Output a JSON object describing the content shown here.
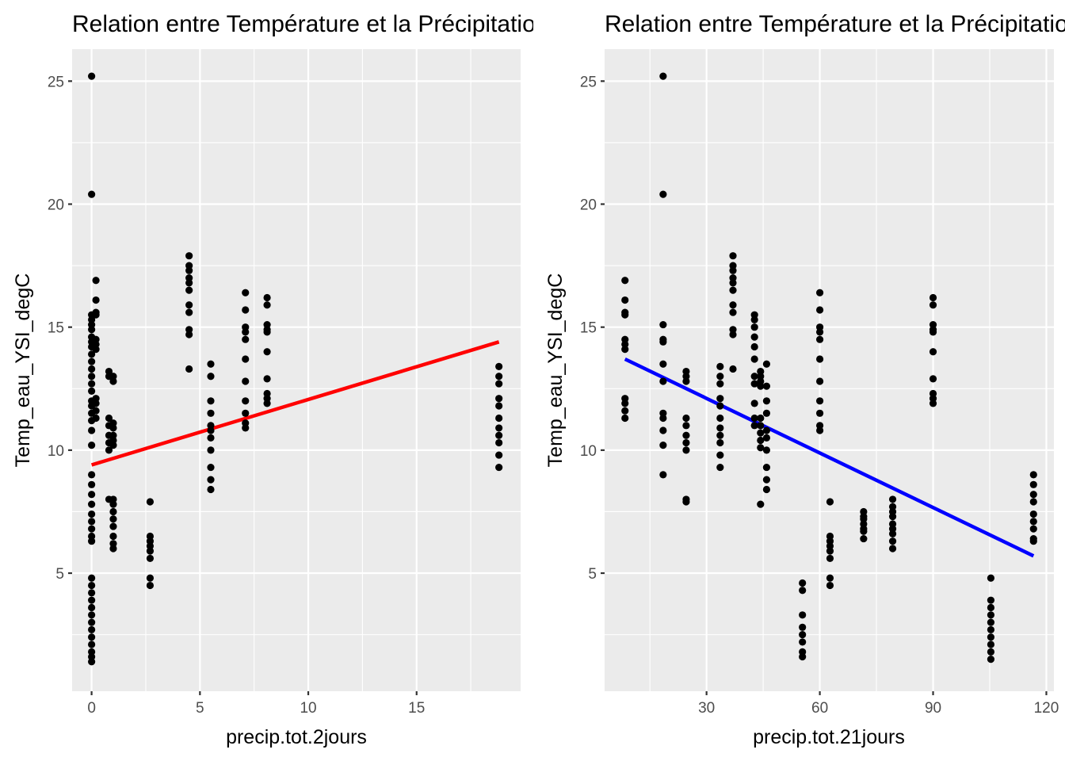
{
  "chart_data": [
    {
      "type": "scatter",
      "title": "Relation entre Température et la Précipitation",
      "xlabel": "precip.tot.2jours",
      "ylabel": "Temp_eau_YSI_degC",
      "xlim": [
        -0.9,
        19.8
      ],
      "ylim": [
        0.2,
        26.3
      ],
      "x_ticks": [
        0,
        5,
        10,
        15
      ],
      "y_ticks": [
        5,
        10,
        15,
        20,
        25
      ],
      "grid": true,
      "background": "#EBEBEB",
      "trend_line": {
        "color": "#FF0000",
        "x": [
          0,
          18.8
        ],
        "y": [
          9.4,
          14.4
        ]
      },
      "points": [
        [
          0,
          25.2
        ],
        [
          0,
          20.4
        ],
        [
          0,
          15.5
        ],
        [
          0,
          15.3
        ],
        [
          0,
          15.1
        ],
        [
          0,
          14.9
        ],
        [
          0,
          14.6
        ],
        [
          0,
          14.4
        ],
        [
          0,
          14.2
        ],
        [
          0,
          13.9
        ],
        [
          0,
          13.6
        ],
        [
          0,
          13.3
        ],
        [
          0,
          13.0
        ],
        [
          0,
          12.7
        ],
        [
          0,
          12.4
        ],
        [
          0,
          12.0
        ],
        [
          0,
          11.8
        ],
        [
          0,
          11.5
        ],
        [
          0,
          11.2
        ],
        [
          0,
          10.8
        ],
        [
          0,
          10.2
        ],
        [
          0,
          9.0
        ],
        [
          0,
          8.6
        ],
        [
          0,
          8.2
        ],
        [
          0,
          7.8
        ],
        [
          0,
          7.4
        ],
        [
          0,
          7.1
        ],
        [
          0,
          6.8
        ],
        [
          0,
          6.5
        ],
        [
          0,
          6.3
        ],
        [
          0,
          4.8
        ],
        [
          0,
          4.5
        ],
        [
          0,
          4.2
        ],
        [
          0,
          3.9
        ],
        [
          0,
          3.6
        ],
        [
          0,
          3.3
        ],
        [
          0,
          3.0
        ],
        [
          0,
          2.7
        ],
        [
          0,
          2.4
        ],
        [
          0,
          2.1
        ],
        [
          0,
          1.8
        ],
        [
          0,
          1.6
        ],
        [
          0,
          1.4
        ],
        [
          0.2,
          16.9
        ],
        [
          0.2,
          16.1
        ],
        [
          0.2,
          15.6
        ],
        [
          0.2,
          15.5
        ],
        [
          0.2,
          14.5
        ],
        [
          0.2,
          14.3
        ],
        [
          0.2,
          14.1
        ],
        [
          0.2,
          12.1
        ],
        [
          0.2,
          11.9
        ],
        [
          0.2,
          11.6
        ],
        [
          0.2,
          11.3
        ],
        [
          0.8,
          13.2
        ],
        [
          0.8,
          13.0
        ],
        [
          0.8,
          11.3
        ],
        [
          0.8,
          11.0
        ],
        [
          0.8,
          10.6
        ],
        [
          0.8,
          10.3
        ],
        [
          0.8,
          10.0
        ],
        [
          0.8,
          8.0
        ],
        [
          1.0,
          13.0
        ],
        [
          1.0,
          12.8
        ],
        [
          1.0,
          11.1
        ],
        [
          1.0,
          10.9
        ],
        [
          1.0,
          10.6
        ],
        [
          1.0,
          10.4
        ],
        [
          1.0,
          10.2
        ],
        [
          1.0,
          8.0
        ],
        [
          1.0,
          7.8
        ],
        [
          1.0,
          7.5
        ],
        [
          1.0,
          7.2
        ],
        [
          1.0,
          6.9
        ],
        [
          1.0,
          6.5
        ],
        [
          1.0,
          6.2
        ],
        [
          1.0,
          6.0
        ],
        [
          2.7,
          7.9
        ],
        [
          2.7,
          6.5
        ],
        [
          2.7,
          6.3
        ],
        [
          2.7,
          6.1
        ],
        [
          2.7,
          5.9
        ],
        [
          2.7,
          5.6
        ],
        [
          2.7,
          4.8
        ],
        [
          2.7,
          4.5
        ],
        [
          4.5,
          17.9
        ],
        [
          4.5,
          17.5
        ],
        [
          4.5,
          17.3
        ],
        [
          4.5,
          17.0
        ],
        [
          4.5,
          16.8
        ],
        [
          4.5,
          16.5
        ],
        [
          4.5,
          15.9
        ],
        [
          4.5,
          15.6
        ],
        [
          4.5,
          14.9
        ],
        [
          4.5,
          14.7
        ],
        [
          4.5,
          13.3
        ],
        [
          5.5,
          13.5
        ],
        [
          5.5,
          13.0
        ],
        [
          5.5,
          12.0
        ],
        [
          5.5,
          11.5
        ],
        [
          5.5,
          11.0
        ],
        [
          5.5,
          10.8
        ],
        [
          5.5,
          10.5
        ],
        [
          5.5,
          10.0
        ],
        [
          5.5,
          9.3
        ],
        [
          5.5,
          8.8
        ],
        [
          5.5,
          8.4
        ],
        [
          7.1,
          16.4
        ],
        [
          7.1,
          15.7
        ],
        [
          7.1,
          15.0
        ],
        [
          7.1,
          14.8
        ],
        [
          7.1,
          14.5
        ],
        [
          7.1,
          13.7
        ],
        [
          7.1,
          12.8
        ],
        [
          7.1,
          12.0
        ],
        [
          7.1,
          11.5
        ],
        [
          7.1,
          11.1
        ],
        [
          7.1,
          10.9
        ],
        [
          8.1,
          16.2
        ],
        [
          8.1,
          15.9
        ],
        [
          8.1,
          15.1
        ],
        [
          8.1,
          14.9
        ],
        [
          8.1,
          14.8
        ],
        [
          8.1,
          14.0
        ],
        [
          8.1,
          12.9
        ],
        [
          8.1,
          12.3
        ],
        [
          8.1,
          12.1
        ],
        [
          8.1,
          11.9
        ],
        [
          18.8,
          13.4
        ],
        [
          18.8,
          13.0
        ],
        [
          18.8,
          12.7
        ],
        [
          18.8,
          12.1
        ],
        [
          18.8,
          11.8
        ],
        [
          18.8,
          11.3
        ],
        [
          18.8,
          10.9
        ],
        [
          18.8,
          10.6
        ],
        [
          18.8,
          10.3
        ],
        [
          18.8,
          9.8
        ],
        [
          18.8,
          9.3
        ]
      ]
    },
    {
      "type": "scatter",
      "title": "Relation entre Température et la Précipitation",
      "xlabel": "precip.tot.21jours",
      "ylabel": "Temp_eau_YSI_degC",
      "xlim": [
        3,
        122
      ],
      "ylim": [
        0.2,
        26.3
      ],
      "x_ticks": [
        30,
        60,
        90,
        120
      ],
      "y_ticks": [
        5,
        10,
        15,
        20,
        25
      ],
      "grid": true,
      "background": "#EBEBEB",
      "trend_line": {
        "color": "#0000FF",
        "x": [
          8.4,
          116.6
        ],
        "y": [
          13.7,
          5.7
        ]
      },
      "points": [
        [
          8.4,
          16.9
        ],
        [
          8.4,
          16.1
        ],
        [
          8.4,
          15.6
        ],
        [
          8.4,
          15.5
        ],
        [
          8.4,
          14.5
        ],
        [
          8.4,
          14.3
        ],
        [
          8.4,
          14.1
        ],
        [
          8.4,
          12.1
        ],
        [
          8.4,
          11.9
        ],
        [
          8.4,
          11.6
        ],
        [
          8.4,
          11.3
        ],
        [
          18.5,
          25.2
        ],
        [
          18.5,
          20.4
        ],
        [
          18.5,
          15.1
        ],
        [
          18.5,
          14.5
        ],
        [
          18.5,
          14.4
        ],
        [
          18.5,
          13.5
        ],
        [
          18.5,
          12.8
        ],
        [
          18.5,
          11.5
        ],
        [
          18.5,
          11.3
        ],
        [
          18.5,
          10.8
        ],
        [
          18.5,
          10.2
        ],
        [
          18.5,
          9.0
        ],
        [
          24.6,
          13.2
        ],
        [
          24.6,
          13.0
        ],
        [
          24.6,
          12.8
        ],
        [
          24.6,
          11.3
        ],
        [
          24.6,
          11.0
        ],
        [
          24.6,
          10.6
        ],
        [
          24.6,
          10.3
        ],
        [
          24.6,
          10.0
        ],
        [
          24.6,
          8.0
        ],
        [
          24.6,
          7.9
        ],
        [
          33.6,
          13.4
        ],
        [
          33.6,
          13.0
        ],
        [
          33.6,
          12.7
        ],
        [
          33.6,
          12.1
        ],
        [
          33.6,
          11.8
        ],
        [
          33.6,
          11.3
        ],
        [
          33.6,
          10.9
        ],
        [
          33.6,
          10.6
        ],
        [
          33.6,
          10.3
        ],
        [
          33.6,
          9.8
        ],
        [
          33.6,
          9.3
        ],
        [
          37.0,
          17.9
        ],
        [
          37.0,
          17.5
        ],
        [
          37.0,
          17.3
        ],
        [
          37.0,
          17.0
        ],
        [
          37.0,
          16.8
        ],
        [
          37.0,
          16.5
        ],
        [
          37.0,
          15.9
        ],
        [
          37.0,
          15.6
        ],
        [
          37.0,
          14.9
        ],
        [
          37.0,
          14.7
        ],
        [
          37.0,
          13.3
        ],
        [
          42.7,
          15.5
        ],
        [
          42.7,
          15.3
        ],
        [
          42.7,
          15.0
        ],
        [
          42.7,
          14.6
        ],
        [
          42.7,
          14.2
        ],
        [
          42.7,
          13.7
        ],
        [
          42.7,
          13.0
        ],
        [
          42.7,
          12.7
        ],
        [
          42.7,
          11.9
        ],
        [
          42.7,
          11.3
        ],
        [
          42.7,
          11.0
        ],
        [
          44.3,
          13.2
        ],
        [
          44.3,
          13.0
        ],
        [
          44.3,
          12.8
        ],
        [
          44.3,
          12.6
        ],
        [
          44.3,
          11.3
        ],
        [
          44.3,
          11.0
        ],
        [
          44.3,
          10.7
        ],
        [
          44.3,
          10.4
        ],
        [
          44.3,
          10.1
        ],
        [
          44.3,
          7.8
        ],
        [
          45.9,
          13.5
        ],
        [
          45.9,
          12.6
        ],
        [
          45.9,
          12.0
        ],
        [
          45.9,
          11.5
        ],
        [
          45.9,
          10.8
        ],
        [
          45.9,
          10.5
        ],
        [
          45.9,
          10.0
        ],
        [
          45.9,
          9.3
        ],
        [
          45.9,
          8.8
        ],
        [
          45.9,
          8.4
        ],
        [
          55.4,
          4.6
        ],
        [
          55.4,
          4.3
        ],
        [
          55.4,
          3.3
        ],
        [
          55.4,
          2.8
        ],
        [
          55.4,
          2.5
        ],
        [
          55.4,
          2.2
        ],
        [
          55.4,
          1.8
        ],
        [
          55.4,
          1.6
        ],
        [
          60.0,
          16.4
        ],
        [
          60.0,
          15.7
        ],
        [
          60.0,
          15.0
        ],
        [
          60.0,
          14.8
        ],
        [
          60.0,
          14.5
        ],
        [
          60.0,
          13.7
        ],
        [
          60.0,
          12.8
        ],
        [
          60.0,
          12.0
        ],
        [
          60.0,
          11.5
        ],
        [
          60.0,
          11.0
        ],
        [
          60.0,
          10.8
        ],
        [
          62.7,
          7.9
        ],
        [
          62.7,
          6.5
        ],
        [
          62.7,
          6.3
        ],
        [
          62.7,
          6.1
        ],
        [
          62.7,
          5.9
        ],
        [
          62.7,
          5.6
        ],
        [
          62.7,
          4.8
        ],
        [
          62.7,
          4.5
        ],
        [
          71.6,
          7.5
        ],
        [
          71.6,
          7.3
        ],
        [
          71.6,
          7.2
        ],
        [
          71.6,
          7.0
        ],
        [
          71.6,
          6.8
        ],
        [
          71.6,
          6.7
        ],
        [
          71.6,
          6.4
        ],
        [
          79.3,
          8.0
        ],
        [
          79.3,
          7.7
        ],
        [
          79.3,
          7.5
        ],
        [
          79.3,
          7.3
        ],
        [
          79.3,
          7.0
        ],
        [
          79.3,
          6.8
        ],
        [
          79.3,
          6.6
        ],
        [
          79.3,
          6.3
        ],
        [
          79.3,
          6.0
        ],
        [
          90.0,
          16.2
        ],
        [
          90.0,
          15.9
        ],
        [
          90.0,
          15.1
        ],
        [
          90.0,
          14.9
        ],
        [
          90.0,
          14.8
        ],
        [
          90.0,
          14.0
        ],
        [
          90.0,
          12.9
        ],
        [
          90.0,
          12.3
        ],
        [
          90.0,
          12.1
        ],
        [
          90.0,
          11.9
        ],
        [
          105.3,
          4.8
        ],
        [
          105.3,
          3.9
        ],
        [
          105.3,
          3.6
        ],
        [
          105.3,
          3.3
        ],
        [
          105.3,
          3.0
        ],
        [
          105.3,
          2.7
        ],
        [
          105.3,
          2.4
        ],
        [
          105.3,
          2.1
        ],
        [
          105.3,
          1.8
        ],
        [
          105.3,
          1.5
        ],
        [
          116.6,
          9.0
        ],
        [
          116.6,
          8.6
        ],
        [
          116.6,
          8.2
        ],
        [
          116.6,
          7.9
        ],
        [
          116.6,
          7.4
        ],
        [
          116.6,
          7.1
        ],
        [
          116.6,
          6.8
        ],
        [
          116.6,
          6.4
        ],
        [
          116.6,
          6.3
        ]
      ]
    }
  ]
}
